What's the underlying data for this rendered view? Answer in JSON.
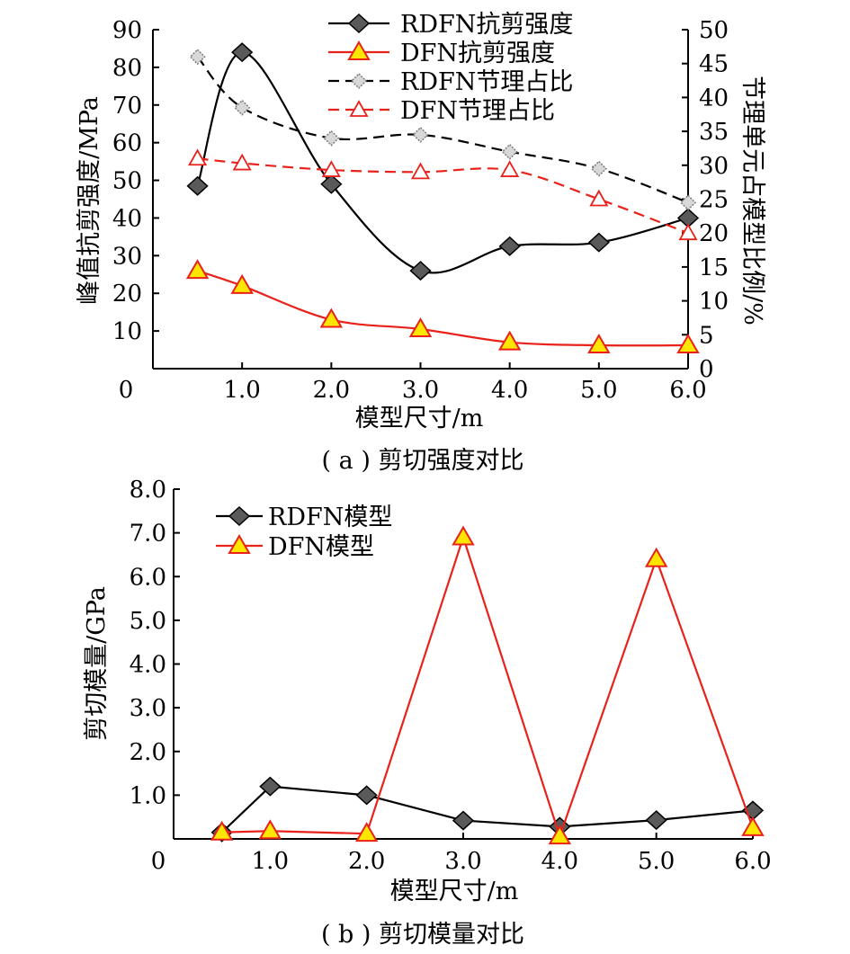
{
  "chart_data": [
    {
      "type": "line",
      "caption": "( a ) 剪切强度对比",
      "xlabel": "模型尺寸/m",
      "ylabel": "峰值抗剪强度/MPa",
      "y2label": "节理单元占模型比例/%",
      "xlim": [
        0.0,
        6.0
      ],
      "ylim": [
        0,
        90
      ],
      "y2lim": [
        0,
        50
      ],
      "x_ticks": [
        "0",
        "1.0",
        "2.0",
        "3.0",
        "4.0",
        "5.0",
        "6.0"
      ],
      "y_ticks": [
        "10",
        "20",
        "30",
        "40",
        "50",
        "60",
        "70",
        "80",
        "90"
      ],
      "y_zero_label": "0",
      "y2_ticks": [
        "0",
        "5",
        "10",
        "15",
        "20",
        "25",
        "30",
        "35",
        "40",
        "45",
        "50"
      ],
      "grid": false,
      "legend": "top-center",
      "series": [
        {
          "name": "RDFN抗剪强度",
          "axis": "left",
          "color": "#000000",
          "marker": "diamond",
          "line": "solid",
          "smooth": true,
          "x": [
            0.5,
            1.0,
            2.0,
            3.0,
            4.0,
            5.0,
            6.0
          ],
          "values": [
            48.5,
            84.0,
            49.0,
            26.0,
            32.5,
            33.5,
            40.0
          ]
        },
        {
          "name": "DFN抗剪强度",
          "axis": "left",
          "color": "#e8221b",
          "marker": "triangle",
          "line": "solid",
          "smooth": true,
          "x": [
            0.5,
            1.0,
            2.0,
            3.0,
            4.0,
            5.0,
            6.0
          ],
          "values": [
            26.0,
            22.0,
            13.0,
            10.5,
            7.0,
            6.2,
            6.2
          ]
        },
        {
          "name": "RDFN节理占比",
          "axis": "right",
          "color": "#000000",
          "marker": "dot-diamond",
          "line": "dashed",
          "smooth": true,
          "x": [
            0.5,
            1.0,
            2.0,
            3.0,
            4.0,
            5.0,
            6.0
          ],
          "values": [
            46.0,
            38.5,
            34.0,
            34.5,
            32.0,
            29.5,
            24.5
          ]
        },
        {
          "name": "DFN节理占比",
          "axis": "right",
          "color": "#e8221b",
          "marker": "hollow-triangle",
          "line": "dashed",
          "smooth": true,
          "x": [
            0.5,
            1.0,
            2.0,
            3.0,
            4.0,
            5.0,
            6.0
          ],
          "values": [
            31.0,
            30.3,
            29.3,
            29.0,
            29.3,
            25.0,
            20.0
          ]
        }
      ]
    },
    {
      "type": "line",
      "caption": "( b ) 剪切模量对比",
      "xlabel": "模型尺寸/m",
      "ylabel": "剪切模量/GPa",
      "xlim": [
        0.0,
        6.0
      ],
      "ylim": [
        0.0,
        8.0
      ],
      "x_ticks": [
        "0",
        "1.0",
        "2.0",
        "3.0",
        "4.0",
        "5.0",
        "6.0"
      ],
      "y_ticks": [
        "1.0",
        "2.0",
        "3.0",
        "4.0",
        "5.0",
        "6.0",
        "7.0",
        "8.0"
      ],
      "grid": false,
      "legend": "top-left",
      "series": [
        {
          "name": "RDFN模型",
          "color": "#000000",
          "marker": "diamond",
          "line": "solid",
          "smooth": false,
          "x": [
            0.5,
            1.0,
            2.0,
            3.0,
            4.0,
            5.0,
            6.0
          ],
          "values": [
            0.15,
            1.2,
            1.0,
            0.42,
            0.28,
            0.43,
            0.65
          ]
        },
        {
          "name": "DFN模型",
          "color": "#e8221b",
          "marker": "triangle",
          "line": "solid",
          "smooth": false,
          "x": [
            0.5,
            1.0,
            2.0,
            3.0,
            4.0,
            5.0,
            6.0
          ],
          "values": [
            0.15,
            0.18,
            0.12,
            6.9,
            0.06,
            6.4,
            0.25
          ]
        }
      ]
    }
  ]
}
